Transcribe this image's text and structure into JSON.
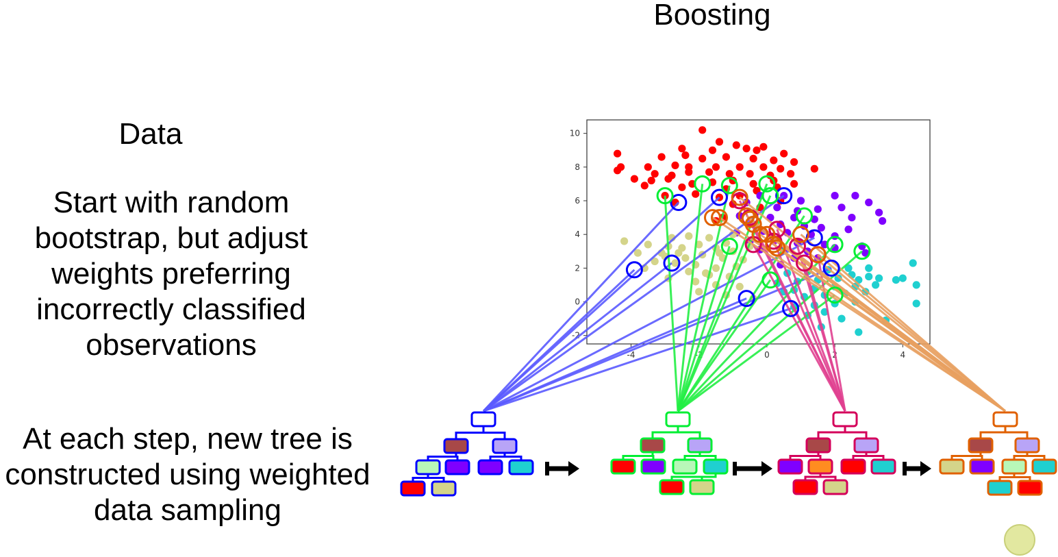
{
  "title": "Boosting",
  "left_panel": {
    "heading": "Data",
    "description": "Start with random bootstrap, but adjust weights preferring incorrectly classified observations",
    "step_text": "At each step, new tree is constructed using weighted data sampling"
  },
  "chart_data": {
    "type": "scatter",
    "xlim": [
      -5.3,
      4.8
    ],
    "ylim": [
      -2.5,
      10.8
    ],
    "x_ticks": [
      -4,
      -2,
      0,
      2,
      4
    ],
    "y_ticks": [
      -2,
      0,
      2,
      4,
      6,
      8,
      10
    ],
    "x_tick_labels": [
      "-4",
      "-2",
      "0",
      "2",
      "4"
    ],
    "y_tick_labels": [
      "-2",
      "0",
      "2",
      "4",
      "6",
      "8",
      "10"
    ],
    "grid": false,
    "series": [
      {
        "color": "#ff0000",
        "points": [
          [
            -1.9,
            10.2
          ],
          [
            -2.5,
            9.1
          ],
          [
            -1.6,
            9.0
          ],
          [
            -1.4,
            9.5
          ],
          [
            -0.9,
            9.3
          ],
          [
            -0.6,
            9.1
          ],
          [
            -0.3,
            9.0
          ],
          [
            -0.1,
            9.2
          ],
          [
            0.5,
            8.8
          ],
          [
            -4.4,
            8.8
          ],
          [
            -3.1,
            8.6
          ],
          [
            -2.4,
            8.7
          ],
          [
            -1.9,
            8.5
          ],
          [
            -1.2,
            8.6
          ],
          [
            -0.4,
            8.5
          ],
          [
            0.2,
            8.4
          ],
          [
            0.8,
            8.3
          ],
          [
            -4.3,
            8.0
          ],
          [
            -3.5,
            8.0
          ],
          [
            -2.7,
            8.1
          ],
          [
            -2.3,
            8.0
          ],
          [
            -1.5,
            8.0
          ],
          [
            -0.8,
            8.0
          ],
          [
            -0.1,
            8.0
          ],
          [
            0.4,
            7.9
          ],
          [
            1.4,
            7.9
          ],
          [
            -4.4,
            7.8
          ],
          [
            -3.3,
            7.6
          ],
          [
            -2.8,
            7.5
          ],
          [
            -2.3,
            7.7
          ],
          [
            -1.7,
            7.7
          ],
          [
            -1.1,
            7.6
          ],
          [
            -0.5,
            7.6
          ],
          [
            0.1,
            7.5
          ],
          [
            0.7,
            7.6
          ],
          [
            -3.9,
            7.3
          ],
          [
            -3.4,
            7.2
          ],
          [
            -2.9,
            7.3
          ],
          [
            -2.2,
            7.0
          ],
          [
            -1.6,
            7.1
          ],
          [
            -1.0,
            7.2
          ],
          [
            -0.4,
            7.0
          ],
          [
            0.2,
            7.2
          ],
          [
            0.8,
            7.0
          ],
          [
            -3.6,
            6.9
          ],
          [
            -2.5,
            6.8
          ],
          [
            -1.2,
            6.7
          ],
          [
            -0.3,
            6.6
          ],
          [
            0.3,
            6.8
          ],
          [
            -3.0,
            6.3
          ],
          [
            -2.1,
            6.4
          ],
          [
            -0.8,
            6.3
          ],
          [
            -2.7,
            5.9
          ],
          [
            -1.4,
            6.2
          ],
          [
            0.4,
            6.0
          ],
          [
            -1.0,
            5.8
          ],
          [
            -0.2,
            5.6
          ],
          [
            -1.3,
            5.0
          ],
          [
            -1.5,
            4.8
          ]
        ]
      },
      {
        "color": "#7f00ff",
        "points": [
          [
            -0.2,
            6.3
          ],
          [
            0.5,
            6.3
          ],
          [
            1.0,
            6.0
          ],
          [
            2.0,
            6.3
          ],
          [
            2.6,
            6.3
          ],
          [
            3.0,
            5.9
          ],
          [
            -0.6,
            5.9
          ],
          [
            0.3,
            5.6
          ],
          [
            0.9,
            5.4
          ],
          [
            1.5,
            5.5
          ],
          [
            2.2,
            5.6
          ],
          [
            3.3,
            5.3
          ],
          [
            -0.8,
            5.1
          ],
          [
            0.1,
            5.0
          ],
          [
            0.8,
            5.0
          ],
          [
            1.4,
            4.9
          ],
          [
            2.5,
            5.0
          ],
          [
            3.4,
            4.8
          ],
          [
            -0.4,
            4.6
          ],
          [
            0.4,
            4.6
          ],
          [
            1.1,
            4.5
          ],
          [
            1.6,
            4.4
          ],
          [
            2.4,
            4.3
          ],
          [
            -0.9,
            4.1
          ],
          [
            -0.1,
            4.2
          ],
          [
            0.6,
            4.1
          ],
          [
            1.3,
            4.0
          ],
          [
            2.0,
            3.9
          ],
          [
            -0.5,
            3.6
          ],
          [
            0.2,
            3.6
          ],
          [
            0.9,
            3.5
          ],
          [
            1.7,
            3.4
          ],
          [
            2.8,
            3.3
          ],
          [
            -0.2,
            3.1
          ],
          [
            0.5,
            3.1
          ],
          [
            1.2,
            3.0
          ],
          [
            2.0,
            3.2
          ],
          [
            0.8,
            2.6
          ],
          [
            1.5,
            2.6
          ],
          [
            2.9,
            2.9
          ],
          [
            0.4,
            2.2
          ]
        ]
      },
      {
        "color": "#d4d48a",
        "points": [
          [
            -4.2,
            3.6
          ],
          [
            -2.8,
            3.8
          ],
          [
            -2.3,
            3.9
          ],
          [
            -1.7,
            3.8
          ],
          [
            -1.2,
            3.5
          ],
          [
            -3.5,
            3.4
          ],
          [
            -2.9,
            3.3
          ],
          [
            -2.5,
            3.2
          ],
          [
            -2.0,
            3.4
          ],
          [
            -1.5,
            3.2
          ],
          [
            -1.0,
            3.0
          ],
          [
            -0.5,
            3.3
          ],
          [
            -3.8,
            2.9
          ],
          [
            -3.0,
            2.7
          ],
          [
            -2.4,
            2.6
          ],
          [
            -1.9,
            2.8
          ],
          [
            -1.3,
            2.6
          ],
          [
            -0.7,
            2.5
          ],
          [
            -3.3,
            2.4
          ],
          [
            -2.7,
            2.3
          ],
          [
            -2.1,
            2.2
          ],
          [
            -1.5,
            2.0
          ],
          [
            -0.9,
            2.1
          ],
          [
            -3.6,
            2.0
          ],
          [
            -2.3,
            1.8
          ],
          [
            -1.7,
            1.6
          ],
          [
            -1.1,
            1.5
          ],
          [
            -2.9,
            1.4
          ],
          [
            -2.1,
            1.2
          ],
          [
            -1.5,
            1.0
          ],
          [
            -0.8,
            0.9
          ],
          [
            -2.0,
            0.6
          ],
          [
            -1.2,
            0.4
          ],
          [
            -0.4,
            0.2
          ],
          [
            -3.1,
            2.9
          ],
          [
            -1.0,
            4.0
          ],
          [
            -1.8,
            1.7
          ],
          [
            -2.6,
            2.9
          ],
          [
            -1.4,
            2.9
          ]
        ]
      },
      {
        "color": "#1fd0d0",
        "points": [
          [
            4.3,
            2.3
          ],
          [
            3.0,
            2.0
          ],
          [
            2.4,
            2.0
          ],
          [
            1.8,
            1.9
          ],
          [
            1.2,
            1.8
          ],
          [
            0.6,
            1.7
          ],
          [
            4.0,
            1.4
          ],
          [
            3.3,
            1.4
          ],
          [
            2.7,
            1.3
          ],
          [
            2.1,
            1.4
          ],
          [
            1.5,
            1.3
          ],
          [
            0.9,
            1.2
          ],
          [
            0.3,
            1.1
          ],
          [
            4.4,
            1.0
          ],
          [
            3.2,
            1.0
          ],
          [
            2.6,
            0.9
          ],
          [
            2.0,
            0.9
          ],
          [
            1.4,
            0.8
          ],
          [
            0.8,
            0.7
          ],
          [
            2.9,
            0.6
          ],
          [
            2.3,
            0.5
          ],
          [
            1.7,
            0.4
          ],
          [
            1.1,
            0.3
          ],
          [
            4.4,
            -0.1
          ],
          [
            2.6,
            0.0
          ],
          [
            2.0,
            -0.1
          ],
          [
            1.4,
            -0.2
          ],
          [
            0.8,
            -0.3
          ],
          [
            1.7,
            -0.6
          ],
          [
            1.2,
            -0.8
          ],
          [
            3.5,
            -1.1
          ],
          [
            2.2,
            -1.0
          ],
          [
            2.7,
            -1.8
          ],
          [
            1.6,
            -1.5
          ],
          [
            3.0,
            1.5
          ],
          [
            2.5,
            1.6
          ],
          [
            3.8,
            1.3
          ],
          [
            0.5,
            0.6
          ]
        ]
      }
    ]
  },
  "trees": [
    {
      "color": "#0000ff",
      "leaves": [
        "#ff0000",
        "#d4d48a",
        "#7f00ff",
        "#7f00ff",
        "#1fd0d0"
      ]
    },
    {
      "color": "#00ee33",
      "leaves": [
        "#ff0000",
        "#7f00ff",
        "#b8f7b8",
        "#1fd0d0",
        "#ff0000",
        "#d4d48a"
      ]
    },
    {
      "color": "#d4005a",
      "leaves": [
        "#7f00ff",
        "#ff8c20",
        "#ff0000",
        "#1fd0d0",
        "#ff0000",
        "#d4d48a"
      ]
    },
    {
      "color": "#e06000",
      "leaves": [
        "#d4d48a",
        "#7f00ff",
        "#b8f7b8",
        "#1fd0d0",
        "#1fd0d0",
        "#ff0000"
      ]
    }
  ]
}
